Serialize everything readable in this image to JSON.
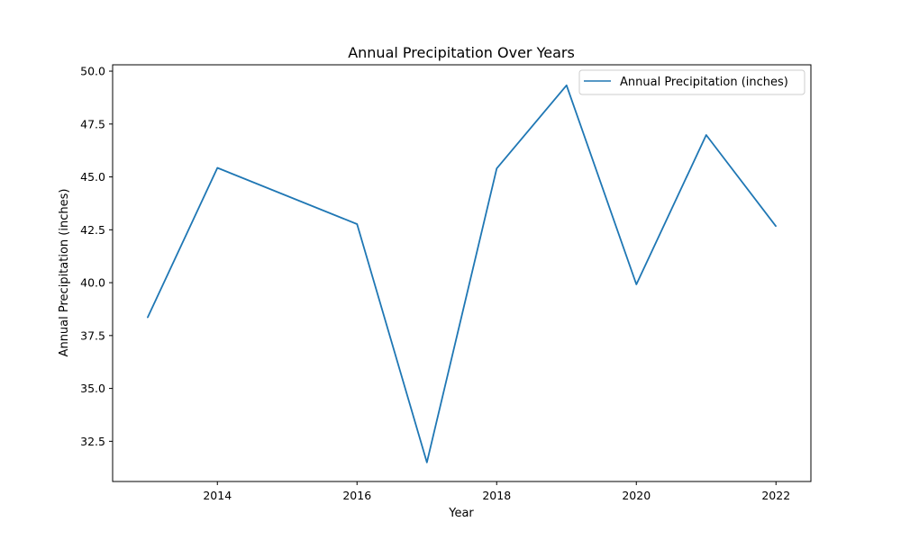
{
  "chart_data": {
    "type": "line",
    "title": "Annual Precipitation Over Years",
    "xlabel": "Year",
    "ylabel": "Annual Precipitation (inches)",
    "xlim": [
      2012.5,
      2022.5
    ],
    "ylim": [
      30.6,
      50.3
    ],
    "x_ticks": [
      2014,
      2016,
      2018,
      2020,
      2022
    ],
    "y_ticks": [
      32.5,
      35.0,
      37.5,
      40.0,
      42.5,
      45.0,
      47.5,
      50.0
    ],
    "x_tick_labels": [
      "2014",
      "2016",
      "2018",
      "2020",
      "2022"
    ],
    "y_tick_labels": [
      "32.5",
      "35.0",
      "37.5",
      "40.0",
      "42.5",
      "45.0",
      "47.5",
      "50.0"
    ],
    "grid": false,
    "legend_position": "upper right",
    "series": [
      {
        "name": "Annual Precipitation (inches)",
        "color": "#1f77b4",
        "x": [
          2013,
          2014,
          2016,
          2017,
          2018,
          2019,
          2020,
          2021,
          2022
        ],
        "y": [
          38.35,
          45.43,
          42.77,
          31.5,
          45.4,
          49.33,
          39.92,
          46.98,
          42.66
        ]
      }
    ]
  }
}
